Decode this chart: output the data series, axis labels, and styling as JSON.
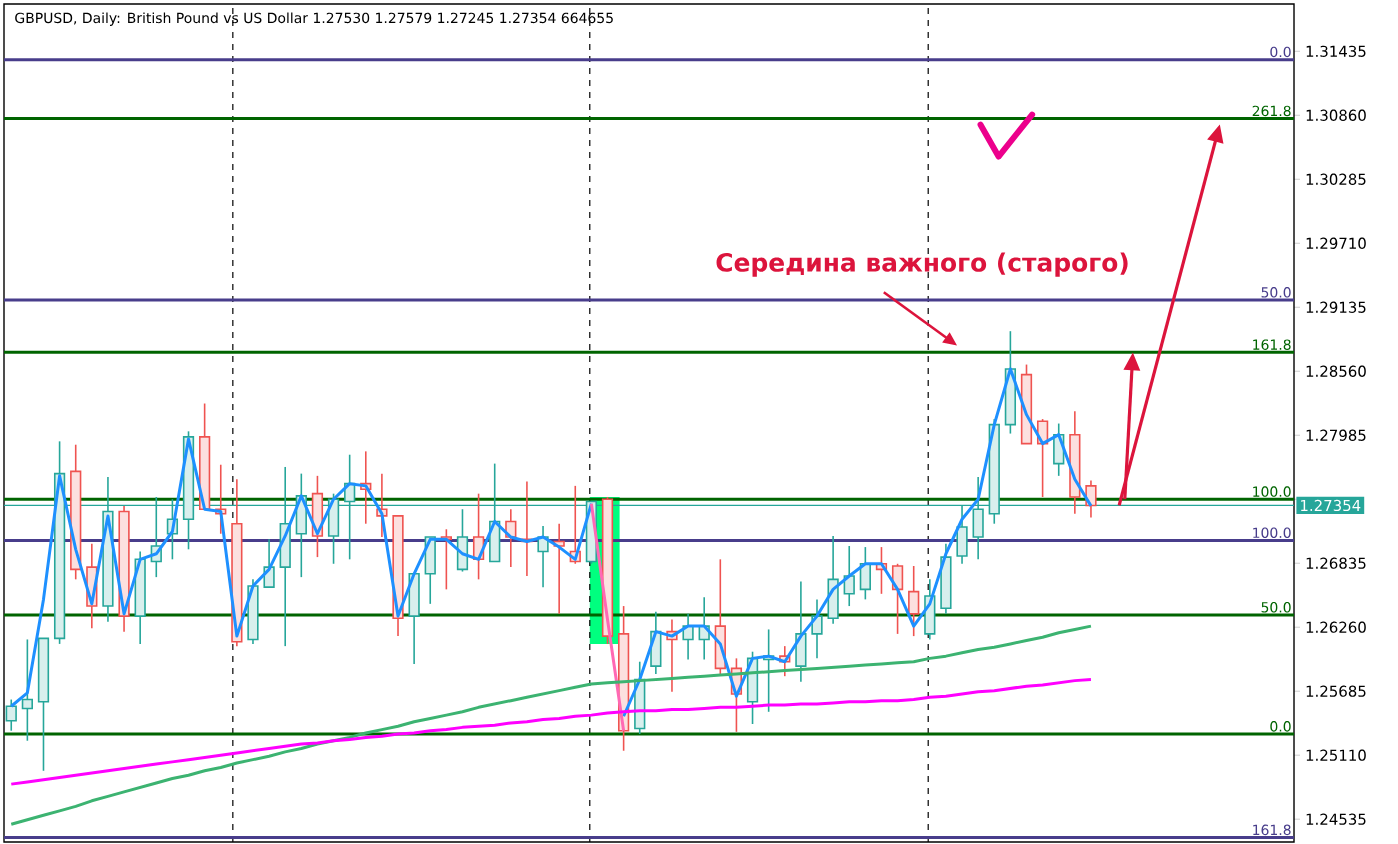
{
  "chart_data": {
    "type": "candlestick",
    "title": "GBPUSD, Daily: British Pound vs US Dollar  1.27530 1.27579 1.27245 1.27354  664655",
    "categories": [
      null,
      null,
      null,
      null,
      null,
      null,
      null,
      null,
      null,
      null,
      null,
      null,
      null,
      null,
      null,
      null,
      null,
      null,
      null,
      null,
      null,
      null,
      null,
      null,
      null,
      null,
      null,
      null,
      null,
      null,
      null,
      null,
      null,
      null,
      null,
      null,
      null,
      null,
      null,
      null,
      null,
      null,
      null,
      null,
      null,
      null,
      null,
      null,
      null,
      null,
      null,
      null,
      null,
      null,
      null,
      null,
      null,
      null,
      null,
      null,
      null,
      null,
      null,
      null,
      null,
      null,
      null,
      null
    ],
    "ohlc": [
      [
        1.2542,
        1.2561,
        1.2533,
        1.2555
      ],
      [
        1.2553,
        1.2615,
        1.2524,
        1.2561
      ],
      [
        1.2559,
        1.2616,
        1.2497,
        1.2616
      ],
      [
        1.2616,
        1.2793,
        1.2611,
        1.2764
      ],
      [
        1.2766,
        1.279,
        1.2669,
        1.2678
      ],
      [
        1.268,
        1.2701,
        1.2625,
        1.2645
      ],
      [
        1.2645,
        1.2761,
        1.2631,
        1.273
      ],
      [
        1.273,
        1.2735,
        1.2622,
        1.2636
      ],
      [
        1.2636,
        1.2694,
        1.2611,
        1.2687
      ],
      [
        1.2685,
        1.2743,
        1.2671,
        1.2699
      ],
      [
        1.271,
        1.2741,
        1.2687,
        1.2723
      ],
      [
        1.2723,
        1.2802,
        1.2696,
        1.2797
      ],
      [
        1.2797,
        1.2827,
        1.2732,
        1.2732
      ],
      [
        1.2732,
        1.2772,
        1.271,
        1.2728
      ],
      [
        1.2719,
        1.2759,
        1.2609,
        1.2613
      ],
      [
        1.2615,
        1.2669,
        1.2611,
        1.2663
      ],
      [
        1.2662,
        1.2705,
        1.2662,
        1.268
      ],
      [
        1.268,
        1.277,
        1.2609,
        1.2719
      ],
      [
        1.271,
        1.2764,
        1.2671,
        1.2744
      ],
      [
        1.2746,
        1.2762,
        1.2689,
        1.2708
      ],
      [
        1.2708,
        1.2746,
        1.2683,
        1.2741
      ],
      [
        1.2739,
        1.2781,
        1.2687,
        1.2755
      ],
      [
        1.2755,
        1.2784,
        1.2719,
        1.275
      ],
      [
        1.2732,
        1.2764,
        1.2707,
        1.2726
      ],
      [
        1.2726,
        1.2726,
        1.2618,
        1.2634
      ],
      [
        1.2636,
        1.2674,
        1.2593,
        1.2674
      ],
      [
        1.2674,
        1.2707,
        1.2647,
        1.2707
      ],
      [
        1.2707,
        1.2714,
        1.266,
        1.2705
      ],
      [
        1.2678,
        1.2732,
        1.2676,
        1.2707
      ],
      [
        1.2707,
        1.2746,
        1.2669,
        1.2687
      ],
      [
        1.2685,
        1.2773,
        1.2685,
        1.2721
      ],
      [
        1.2721,
        1.2732,
        1.268,
        1.2707
      ],
      [
        1.2705,
        1.2757,
        1.2672,
        1.2703
      ],
      [
        1.2694,
        1.2717,
        1.2662,
        1.2707
      ],
      [
        1.2703,
        1.2719,
        1.2638,
        1.2699
      ],
      [
        1.2694,
        1.2753,
        1.2683,
        1.2685
      ],
      [
        1.2685,
        1.2739,
        1.2683,
        1.2739
      ],
      [
        1.2741,
        1.2743,
        1.2611,
        1.2618
      ],
      [
        1.262,
        1.2645,
        1.2515,
        1.2533
      ],
      [
        1.2535,
        1.2595,
        1.253,
        1.2579
      ],
      [
        1.2591,
        1.264,
        1.2584,
        1.2622
      ],
      [
        1.2622,
        1.2633,
        1.2568,
        1.2615
      ],
      [
        1.2615,
        1.2638,
        1.2597,
        1.2627
      ],
      [
        1.2615,
        1.2653,
        1.2597,
        1.2627
      ],
      [
        1.2627,
        1.2687,
        1.2584,
        1.2589
      ],
      [
        1.2589,
        1.2598,
        1.2532,
        1.2566
      ],
      [
        1.2559,
        1.2604,
        1.2539,
        1.2598
      ],
      [
        1.2597,
        1.2624,
        1.255,
        1.26
      ],
      [
        1.26,
        1.2609,
        1.2582,
        1.2595
      ],
      [
        1.2591,
        1.2667,
        1.2577,
        1.262
      ],
      [
        1.262,
        1.2651,
        1.2598,
        1.2636
      ],
      [
        1.2634,
        1.2708,
        1.2629,
        1.2669
      ],
      [
        1.2656,
        1.2699,
        1.2645,
        1.2672
      ],
      [
        1.266,
        1.2698,
        1.2651,
        1.2683
      ],
      [
        1.2683,
        1.2698,
        1.2656,
        1.2678
      ],
      [
        1.2681,
        1.2683,
        1.262,
        1.266
      ],
      [
        1.2658,
        1.2681,
        1.2618,
        1.2638
      ],
      [
        1.262,
        1.2669,
        1.2615,
        1.2654
      ],
      [
        1.2643,
        1.2701,
        1.2638,
        1.2689
      ],
      [
        1.269,
        1.2735,
        1.2683,
        1.2716
      ],
      [
        1.2707,
        1.2761,
        1.2687,
        1.2732
      ],
      [
        1.2728,
        1.2813,
        1.2719,
        1.2808
      ],
      [
        1.2808,
        1.2892,
        1.28,
        1.2858
      ],
      [
        1.2853,
        1.2862,
        1.2791,
        1.2791
      ],
      [
        1.2811,
        1.2813,
        1.2743,
        1.2791
      ],
      [
        1.2773,
        1.2809,
        1.2762,
        1.2799
      ],
      [
        1.2799,
        1.282,
        1.2728,
        1.2743
      ],
      [
        1.2753,
        1.27579,
        1.27245,
        1.27354
      ]
    ],
    "colors": [
      "#26a69a",
      "#26a69a",
      "#26a69a",
      "#26a69a",
      "#ef5350",
      "#ef5350",
      "#26a69a",
      "#ef5350",
      "#26a69a",
      "#26a69a",
      "#26a69a",
      "#26a69a",
      "#ef5350",
      "#ef5350",
      "#ef5350",
      "#26a69a",
      "#26a69a",
      "#26a69a",
      "#26a69a",
      "#ef5350",
      "#26a69a",
      "#26a69a",
      "#ef5350",
      "#ef5350",
      "#ef5350",
      "#26a69a",
      "#26a69a",
      "#ef5350",
      "#26a69a",
      "#ef5350",
      "#26a69a",
      "#ef5350",
      "#ef5350",
      "#26a69a",
      "#ef5350",
      "#ef5350",
      "#26a69a",
      "#ef5350",
      "#ef5350",
      "#26a69a",
      "#26a69a",
      "#ef5350",
      "#26a69a",
      "#26a69a",
      "#ef5350",
      "#ef5350",
      "#26a69a",
      "#26a69a",
      "#ef5350",
      "#26a69a",
      "#26a69a",
      "#26a69a",
      "#26a69a",
      "#26a69a",
      "#ef5350",
      "#ef5350",
      "#ef5350",
      "#26a69a",
      "#26a69a",
      "#26a69a",
      "#26a69a",
      "#26a69a",
      "#26a69a",
      "#ef5350",
      "#ef5350",
      "#26a69a",
      "#ef5350",
      "#ef5350"
    ],
    "series": [
      {
        "type": "line",
        "color": "#1e90ff",
        "values": [
          1.2555,
          1.2567,
          1.2651,
          1.2762,
          1.2696,
          1.2647,
          1.2726,
          1.2638,
          1.2687,
          1.2692,
          1.2712,
          1.2795,
          1.2732,
          1.273,
          1.2618,
          1.2663,
          1.2678,
          1.2708,
          1.2744,
          1.271,
          1.2741,
          1.2755,
          1.2753,
          1.2728,
          1.2636,
          1.2674,
          1.2705,
          1.2705,
          1.2692,
          1.2687,
          1.2721,
          1.2707,
          1.2703,
          1.2707,
          1.2698,
          1.2687,
          1.2737,
          null,
          1.2546,
          1.2579,
          1.2622,
          1.2618,
          1.2627,
          1.2627,
          1.2611,
          1.2564,
          1.2598,
          1.26,
          1.2595,
          1.2618,
          1.2636,
          1.266,
          1.2672,
          1.2683,
          1.2683,
          1.266,
          1.2627,
          1.2647,
          1.2692,
          1.2723,
          1.2741,
          1.2808,
          1.2858,
          1.2817,
          1.2791,
          1.2799,
          1.2759,
          1.2735
        ]
      },
      {
        "type": "line",
        "color": "#ff69b4",
        "values": [
          null,
          null,
          null,
          null,
          null,
          null,
          null,
          null,
          null,
          null,
          null,
          null,
          null,
          null,
          null,
          null,
          null,
          null,
          null,
          null,
          null,
          null,
          null,
          null,
          null,
          null,
          null,
          null,
          null,
          null,
          null,
          null,
          null,
          null,
          null,
          null,
          1.2737,
          1.2633,
          1.2533,
          null,
          null,
          null,
          null,
          null,
          null,
          null,
          null,
          null,
          null,
          null,
          null,
          null,
          null,
          null,
          null,
          null,
          null,
          null,
          null,
          null,
          null,
          null,
          null,
          null,
          null,
          null,
          null,
          null
        ]
      },
      {
        "type": "line",
        "color": "#3cb371",
        "values": [
          1.2449,
          1.2453,
          1.2457,
          1.2461,
          1.2465,
          1.247,
          1.2474,
          1.2478,
          1.2482,
          1.2486,
          1.249,
          1.2493,
          1.2497,
          1.25,
          1.2504,
          1.2507,
          1.251,
          1.2514,
          1.2517,
          1.2521,
          1.2524,
          1.2527,
          1.2531,
          1.2534,
          1.2537,
          1.2541,
          1.2544,
          1.2547,
          1.255,
          1.2554,
          1.2557,
          1.256,
          1.2563,
          1.2566,
          1.2569,
          1.2572,
          1.2575,
          1.2576,
          1.2577,
          1.2578,
          1.2579,
          1.258,
          1.2581,
          1.2582,
          1.2583,
          1.2584,
          1.2585,
          1.2586,
          1.2587,
          1.2588,
          1.2589,
          1.259,
          1.2591,
          1.2592,
          1.2593,
          1.2594,
          1.2595,
          1.2598,
          1.26,
          1.2603,
          1.2606,
          1.2608,
          1.2611,
          1.2614,
          1.2617,
          1.2621,
          1.2624,
          1.2627
        ]
      },
      {
        "type": "line",
        "color": "#ff00ff",
        "values": [
          1.2485,
          1.2487,
          1.2489,
          1.2491,
          1.2493,
          1.2495,
          1.2497,
          1.2499,
          1.2501,
          1.2503,
          1.2505,
          1.2507,
          1.2509,
          1.2511,
          1.2513,
          1.2515,
          1.2517,
          1.2519,
          1.2521,
          1.2522,
          1.2524,
          1.2525,
          1.2527,
          1.2528,
          1.253,
          1.2531,
          1.2533,
          1.2534,
          1.2536,
          1.2537,
          1.2538,
          1.254,
          1.2541,
          1.2543,
          1.2544,
          1.2546,
          1.2547,
          1.2549,
          1.255,
          1.2551,
          1.2551,
          1.2552,
          1.2552,
          1.2553,
          1.2554,
          1.2554,
          1.2555,
          1.2556,
          1.2556,
          1.2557,
          1.2557,
          1.2558,
          1.2559,
          1.2559,
          1.256,
          1.256,
          1.2561,
          1.2563,
          1.2564,
          1.2566,
          1.2568,
          1.2569,
          1.2571,
          1.2573,
          1.2574,
          1.2576,
          1.2578,
          1.2579
        ]
      }
    ],
    "ylim": [
      1.2433,
      1.3186
    ],
    "yticks": [
      1.24535,
      {
        "value": 1.2511,
        "label": "1.25110"
      },
      1.25685,
      {
        "value": 1.2626,
        "label": "1.26260"
      },
      1.26835,
      {
        "value": 1.2741,
        "label": null
      },
      1.27985,
      {
        "value": 1.2856,
        "label": "1.28560"
      },
      1.29135,
      {
        "value": 1.2971,
        "label": "1.29710"
      },
      1.30285,
      {
        "value": 1.3086,
        "label": "1.30860"
      },
      1.31435
    ],
    "tick_labels": "y",
    "ref_lines": [
      {
        "axis": "y",
        "value": 1.3136,
        "color": "#483d8b"
      },
      {
        "axis": "y",
        "value": 1.292,
        "color": "#483d8b"
      },
      {
        "axis": "y",
        "value": 1.2704,
        "color": "#483d8b"
      },
      {
        "axis": "y",
        "value": 1.2437,
        "color": "#483d8b"
      },
      {
        "axis": "y",
        "value": 1.3083,
        "color": "#006400"
      },
      {
        "axis": "y",
        "value": 1.2873,
        "color": "#006400"
      },
      {
        "axis": "y",
        "value": 1.2741,
        "color": "#006400"
      },
      {
        "axis": "y",
        "value": 1.2637,
        "color": "#006400"
      },
      {
        "axis": "y",
        "value": 1.253,
        "color": "#006400"
      },
      {
        "axis": "y",
        "value": 1.27354,
        "label": "1.27354",
        "color": "#26a69a",
        "line_style": "solid"
      }
    ],
    "annotations": [
      "Середина важного (старого)",
      "0.0",
      "50.0",
      "100.0",
      "161.8",
      "261.8",
      "161.8",
      "100.0",
      "50.0",
      "0.0"
    ]
  }
}
